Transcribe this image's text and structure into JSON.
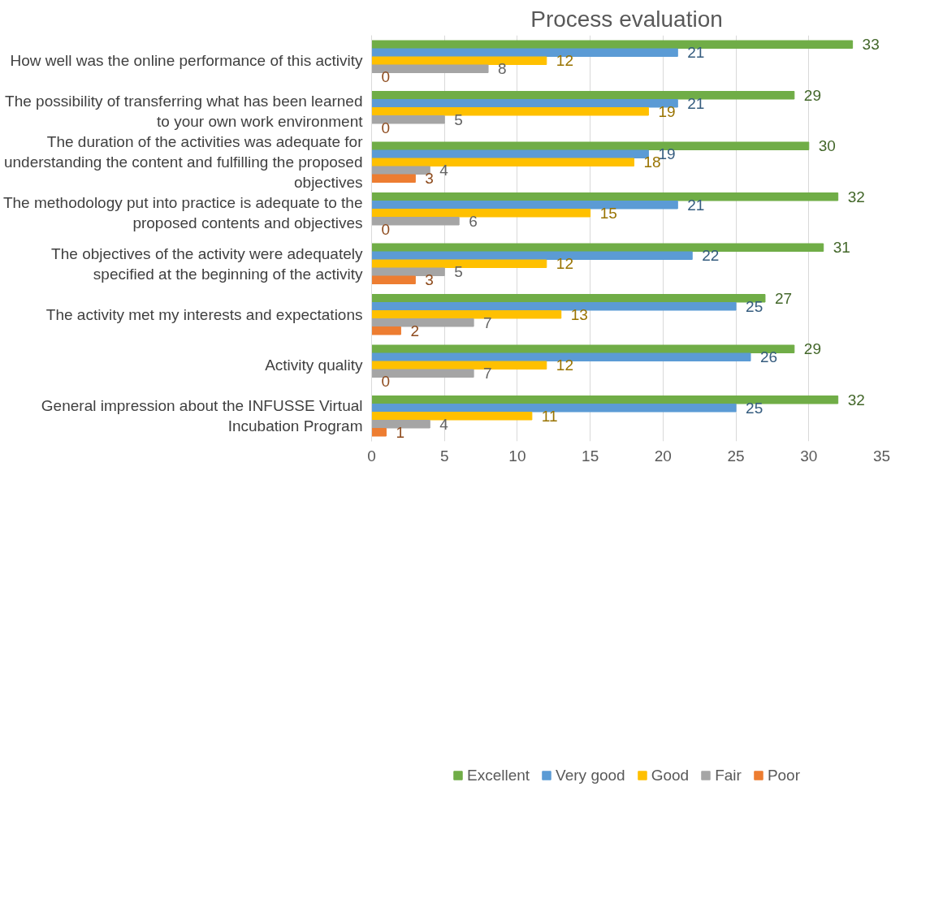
{
  "chart_data": {
    "type": "bar",
    "orientation": "horizontal",
    "title": "Process evaluation",
    "categories": [
      "How well was the online performance of this activity",
      "The possibility of transferring what has been learned to your own work environment",
      "The duration of the activities was adequate for understanding the content and fulfilling the proposed objectives",
      "The methodology put into practice is adequate to the proposed contents and objectives",
      "The objectives of the activity were adequately specified at the beginning of the activity",
      "The activity met my interests and expectations",
      "Activity quality",
      "General impression about the INFUSSE Virtual Incubation Program"
    ],
    "series": [
      {
        "name": "Excellent",
        "color": "#70ad47",
        "values": [
          33,
          29,
          30,
          32,
          31,
          27,
          29,
          32
        ]
      },
      {
        "name": "Very good",
        "color": "#5b9bd5",
        "values": [
          21,
          21,
          19,
          21,
          22,
          25,
          26,
          25
        ]
      },
      {
        "name": "Good",
        "color": "#ffc000",
        "values": [
          12,
          19,
          18,
          15,
          12,
          13,
          12,
          11
        ]
      },
      {
        "name": "Fair",
        "color": "#a5a5a5",
        "values": [
          8,
          5,
          4,
          6,
          5,
          7,
          7,
          4
        ]
      },
      {
        "name": "Poor",
        "color": "#ed7d31",
        "values": [
          0,
          0,
          3,
          0,
          3,
          2,
          0,
          1
        ]
      }
    ],
    "xlim": [
      0,
      35
    ],
    "xticks": [
      0,
      5,
      10,
      15,
      20,
      25,
      30,
      35
    ],
    "grid": "x",
    "legend": "bottom",
    "data_labels": true
  }
}
